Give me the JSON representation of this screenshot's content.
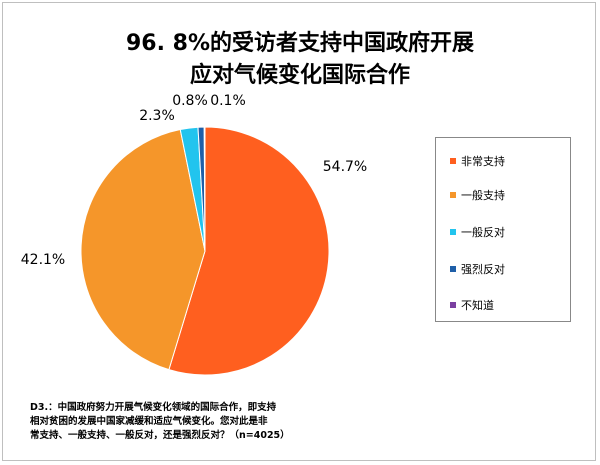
{
  "chart_data": {
    "type": "pie",
    "title_lines": [
      "96. 8%的受访者支持中国政府开展",
      "应对气候变化国际合作"
    ],
    "categories": [
      "非常支持",
      "一般支持",
      "一般反对",
      "强烈反对",
      "不知道"
    ],
    "values": [
      54.7,
      42.1,
      2.3,
      0.8,
      0.1
    ],
    "labels": [
      "54.7%",
      "42.1%",
      "2.3%",
      "0.8%",
      "0.1%"
    ],
    "colors": [
      "#FF5F1F",
      "#F5962A",
      "#22C4EE",
      "#1F5FA8",
      "#7A3FA0"
    ],
    "legend_position": "right",
    "footnote_lines": [
      "D3.：中国政府努力开展气候变化领域的国际合作，即支持",
      "相对贫困的发展中国家减缓和适应气候变化。您对此是非",
      "常支持、一般支持、一般反对，还是强烈反对？（n=4025）"
    ]
  }
}
